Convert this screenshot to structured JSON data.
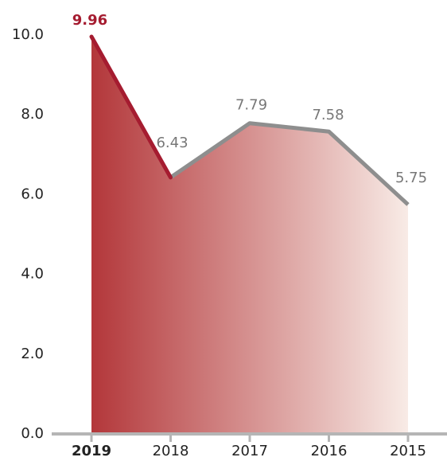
{
  "chart_data": {
    "type": "line",
    "categories": [
      "2019",
      "2018",
      "2017",
      "2016",
      "2015"
    ],
    "series": [
      {
        "color": "#8e8e8e",
        "highlight_color": "#a51c30",
        "values": [
          9.96,
          6.43,
          7.79,
          7.58,
          5.75
        ]
      }
    ],
    "ylim": [
      0,
      10
    ],
    "yticks": [
      {
        "value": 0,
        "label": "0.0"
      },
      {
        "value": 2,
        "label": "2.0"
      },
      {
        "value": 4,
        "label": "4.0"
      },
      {
        "value": 6,
        "label": "6.0"
      },
      {
        "value": 8,
        "label": "8.0"
      },
      {
        "value": 10,
        "label": "10.0"
      }
    ],
    "area_gradient": [
      "#b3373a",
      "#f8ebe6"
    ],
    "axis_color": "#b5b5b5"
  }
}
